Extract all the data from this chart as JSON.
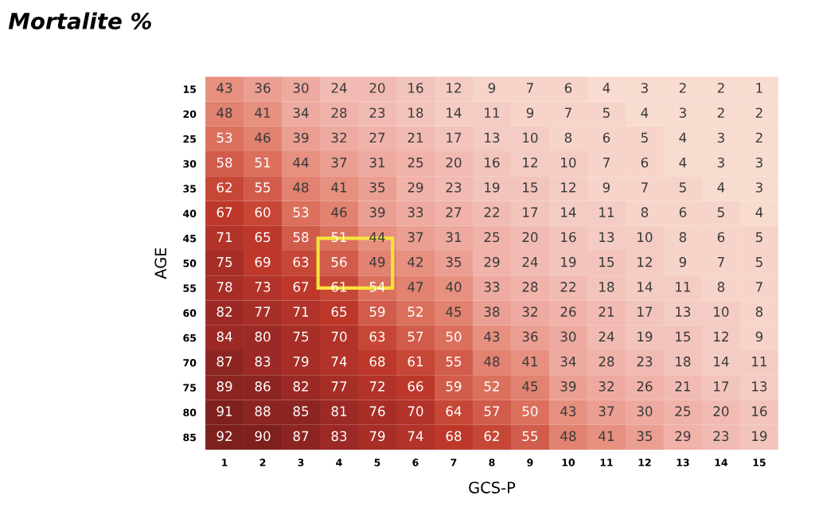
{
  "chart_data": {
    "type": "heatmap",
    "title": "Mortalite %",
    "xlabel": "GCS-P",
    "ylabel": "AGE",
    "categories": [
      "1",
      "2",
      "3",
      "4",
      "5",
      "6",
      "7",
      "8",
      "9",
      "10",
      "11",
      "12",
      "13",
      "14",
      "15"
    ],
    "y_categories": [
      "15",
      "20",
      "25",
      "30",
      "35",
      "40",
      "45",
      "50",
      "55",
      "60",
      "65",
      "70",
      "75",
      "80",
      "85"
    ],
    "cells": [
      [
        43,
        36,
        30,
        24,
        20,
        16,
        12,
        9,
        7,
        6,
        4,
        3,
        2,
        2,
        1
      ],
      [
        48,
        41,
        34,
        28,
        23,
        18,
        14,
        11,
        9,
        7,
        5,
        4,
        3,
        2,
        2
      ],
      [
        53,
        46,
        39,
        32,
        27,
        21,
        17,
        13,
        10,
        8,
        6,
        5,
        4,
        3,
        2
      ],
      [
        58,
        51,
        44,
        37,
        31,
        25,
        20,
        16,
        12,
        10,
        7,
        6,
        4,
        3,
        3
      ],
      [
        62,
        55,
        48,
        41,
        35,
        29,
        23,
        19,
        15,
        12,
        9,
        7,
        5,
        4,
        3
      ],
      [
        67,
        60,
        53,
        46,
        39,
        33,
        27,
        22,
        17,
        14,
        11,
        8,
        6,
        5,
        4
      ],
      [
        71,
        65,
        58,
        51,
        44,
        37,
        31,
        25,
        20,
        16,
        13,
        10,
        8,
        6,
        5
      ],
      [
        75,
        69,
        63,
        56,
        49,
        42,
        35,
        29,
        24,
        19,
        15,
        12,
        9,
        7,
        5
      ],
      [
        78,
        73,
        67,
        61,
        54,
        47,
        40,
        33,
        28,
        22,
        18,
        14,
        11,
        8,
        7
      ],
      [
        82,
        77,
        71,
        65,
        59,
        52,
        45,
        38,
        32,
        26,
        21,
        17,
        13,
        10,
        8
      ],
      [
        84,
        80,
        75,
        70,
        63,
        57,
        50,
        43,
        36,
        30,
        24,
        19,
        15,
        12,
        9
      ],
      [
        87,
        83,
        79,
        74,
        68,
        61,
        55,
        48,
        41,
        34,
        28,
        23,
        18,
        14,
        11
      ],
      [
        89,
        86,
        82,
        77,
        72,
        66,
        59,
        52,
        45,
        39,
        32,
        26,
        21,
        17,
        13
      ],
      [
        91,
        88,
        85,
        81,
        76,
        70,
        64,
        57,
        50,
        43,
        37,
        30,
        25,
        20,
        16
      ],
      [
        92,
        90,
        87,
        83,
        79,
        74,
        68,
        62,
        55,
        48,
        41,
        35,
        29,
        23,
        19
      ]
    ],
    "data_labels": true
  }
}
